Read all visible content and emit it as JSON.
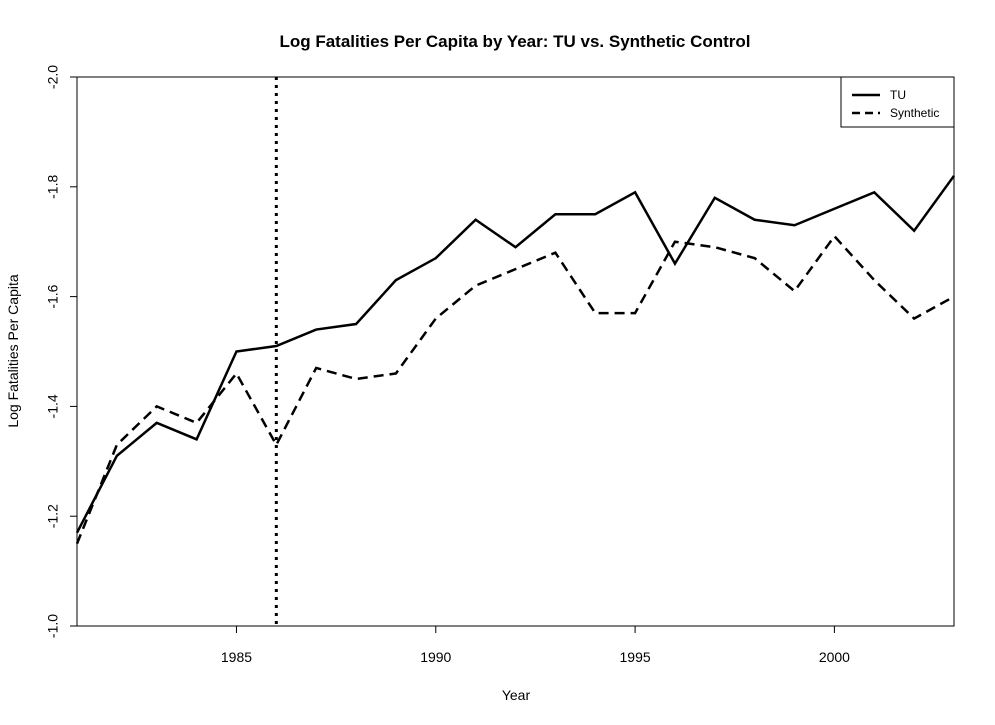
{
  "chart_data": {
    "type": "line",
    "title": "Log Fatalities Per Capita by Year: TU vs. Synthetic Control",
    "xlabel": "Year",
    "ylabel": "Log Fatalities Per Capita",
    "xlim": [
      1981,
      2003
    ],
    "ylim": [
      -1.0,
      -2.0
    ],
    "y_axis_reversed": true,
    "x_ticks": [
      1985,
      1990,
      1995,
      2000
    ],
    "y_ticks": [
      -1.0,
      -1.2,
      -1.4,
      -1.6,
      -1.8,
      -2.0
    ],
    "y_tick_labels": [
      "-1.0",
      "-1.2",
      "-1.4",
      "-1.6",
      "-1.8",
      "-2.0"
    ],
    "grid": false,
    "legend_position": "top-right",
    "treatment_line": {
      "x": 1986,
      "style": "dotted"
    },
    "x": [
      1981,
      1982,
      1983,
      1984,
      1985,
      1986,
      1987,
      1988,
      1989,
      1990,
      1991,
      1992,
      1993,
      1994,
      1995,
      1996,
      1997,
      1998,
      1999,
      2000,
      2001,
      2002,
      2003
    ],
    "series": [
      {
        "name": "TU",
        "style": "solid",
        "color": "#000000",
        "values": [
          -1.17,
          -1.31,
          -1.37,
          -1.34,
          -1.5,
          -1.51,
          -1.54,
          -1.55,
          -1.63,
          -1.67,
          -1.74,
          -1.69,
          -1.75,
          -1.75,
          -1.79,
          -1.66,
          -1.78,
          -1.74,
          -1.73,
          -1.76,
          -1.79,
          -1.72,
          -1.82
        ]
      },
      {
        "name": "Synthetic",
        "style": "dashed",
        "color": "#000000",
        "values": [
          -1.15,
          -1.33,
          -1.4,
          -1.37,
          -1.46,
          -1.33,
          -1.47,
          -1.45,
          -1.46,
          -1.56,
          -1.62,
          -1.65,
          -1.68,
          -1.57,
          -1.57,
          -1.7,
          -1.69,
          -1.67,
          -1.61,
          -1.71,
          -1.63,
          -1.56,
          -1.6
        ]
      }
    ]
  }
}
